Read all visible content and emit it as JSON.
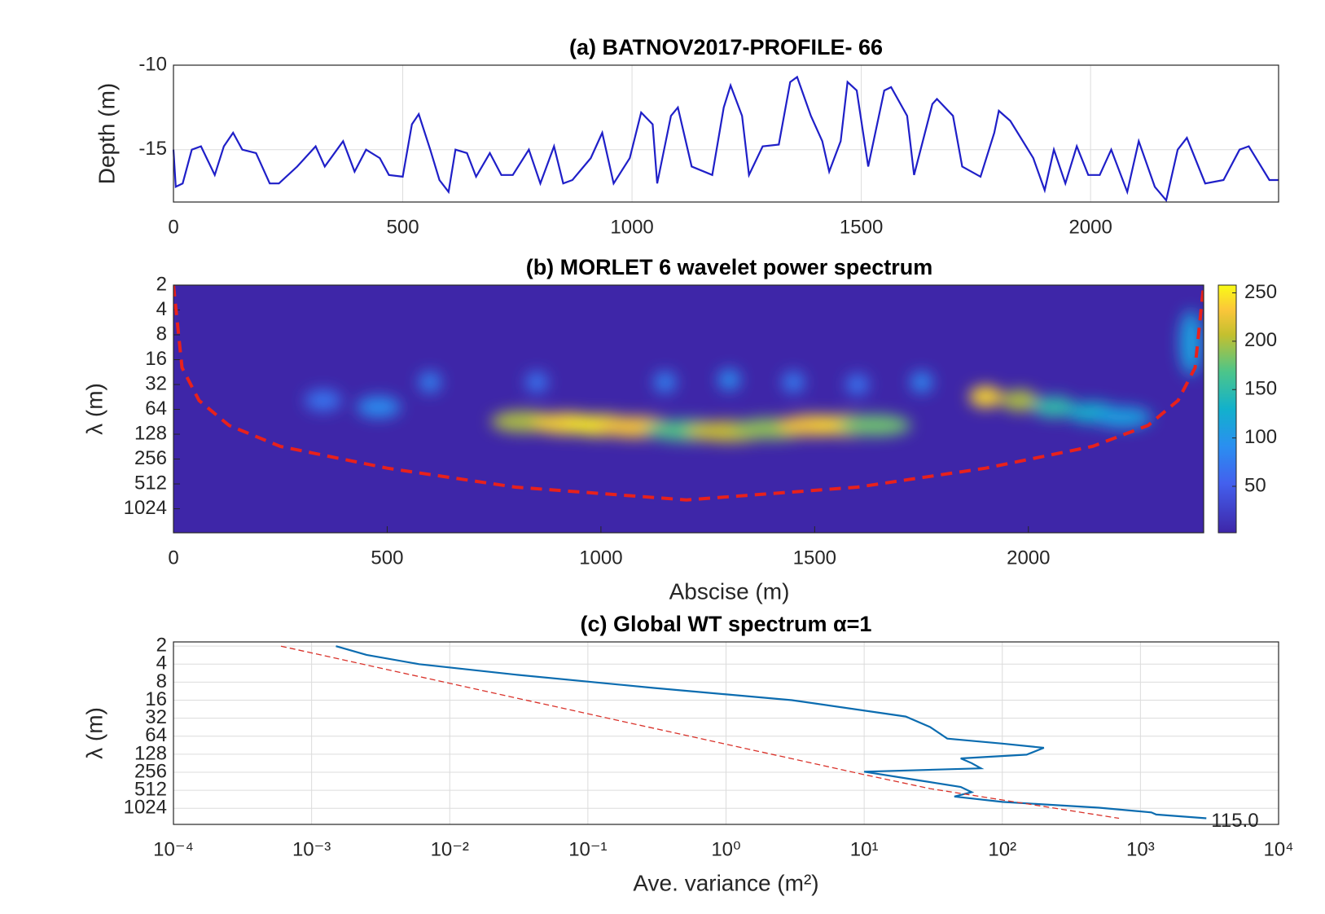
{
  "chart_data": [
    {
      "type": "line",
      "title": "(a) BATNOV2017-PROFILE- 66",
      "ylabel": "Depth (m)",
      "xlim": [
        0,
        2410
      ],
      "xticks": [
        0,
        500,
        1000,
        1500,
        2000
      ],
      "ylim": [
        -18.1,
        -10
      ],
      "yticks": [
        -10,
        -15
      ],
      "grid": true,
      "lines": [
        {
          "color": "#1f1fc8",
          "style": "solid",
          "x": [
            0,
            5,
            20,
            40,
            60,
            90,
            110,
            130,
            150,
            180,
            210,
            230,
            270,
            310,
            330,
            370,
            395,
            420,
            450,
            470,
            500,
            520,
            535,
            560,
            580,
            600,
            615,
            640,
            660,
            690,
            715,
            740,
            775,
            800,
            830,
            850,
            870,
            910,
            935,
            960,
            995,
            1020,
            1045,
            1055,
            1085,
            1100,
            1130,
            1175,
            1200,
            1215,
            1240,
            1255,
            1285,
            1320,
            1345,
            1360,
            1390,
            1415,
            1430,
            1455,
            1470,
            1490,
            1515,
            1550,
            1565,
            1600,
            1615,
            1655,
            1665,
            1700,
            1720,
            1760,
            1790,
            1800,
            1825,
            1875,
            1900,
            1920,
            1945,
            1970,
            1995,
            2020,
            2045,
            2080,
            2105,
            2140,
            2165,
            2190,
            2210,
            2250,
            2290,
            2325,
            2345,
            2390,
            2410
          ],
          "y": [
            -15,
            -17.2,
            -17,
            -15,
            -14.8,
            -16.5,
            -14.8,
            -14,
            -15,
            -15.2,
            -17,
            -17,
            -16,
            -14.8,
            -16,
            -14.5,
            -16.3,
            -15,
            -15.5,
            -16.5,
            -16.6,
            -13.5,
            -12.9,
            -15,
            -16.8,
            -17.5,
            -15,
            -15.2,
            -16.6,
            -15.2,
            -16.5,
            -16.5,
            -15,
            -17,
            -14.8,
            -17,
            -16.8,
            -15.5,
            -14,
            -17,
            -15.5,
            -12.8,
            -13.5,
            -17,
            -13,
            -12.5,
            -16,
            -16.5,
            -12.5,
            -11.2,
            -13,
            -16.5,
            -14.8,
            -14.7,
            -11,
            -10.7,
            -13,
            -14.5,
            -16.3,
            -14.5,
            -11,
            -11.5,
            -16,
            -11.5,
            -11.3,
            -13,
            -16.5,
            -12.3,
            -12,
            -13,
            -16,
            -16.6,
            -14,
            -12.7,
            -13.3,
            -15.5,
            -17.4,
            -15,
            -17,
            -14.8,
            -16.5,
            -16.5,
            -15,
            -17.5,
            -14.5,
            -17.2,
            -18,
            -15,
            -14.3,
            -17,
            -16.8,
            -15,
            -14.8,
            -16.8,
            -16.8
          ]
        }
      ]
    },
    {
      "type": "heatmap",
      "title": "(b) MORLET 6 wavelet power spectrum",
      "xlabel": "Abscise (m)",
      "ylabel": "λ (m)",
      "xlim": [
        0,
        2410
      ],
      "xticks": [
        0,
        500,
        1000,
        1500,
        2000
      ],
      "ylim": [
        2,
        2000
      ],
      "yticks": [
        2,
        4,
        8,
        16,
        32,
        64,
        128,
        256,
        512,
        1024
      ],
      "yscale": "log2",
      "yreverse": true,
      "clim": [
        2,
        258
      ],
      "cticks": [
        50,
        100,
        150,
        200,
        250
      ],
      "cells": {
        "x": [
          820,
          920,
          1000,
          1080,
          1200,
          1300,
          1400,
          1500,
          1580,
          1640,
          1900,
          1980,
          2060,
          2150,
          2220,
          600,
          850,
          1150,
          1300,
          1450,
          1600,
          1750,
          2380,
          350,
          480
        ],
        "lambda": [
          90,
          95,
          100,
          105,
          115,
          118,
          110,
          100,
          100,
          100,
          45,
          50,
          60,
          70,
          80,
          30,
          30,
          30,
          28,
          30,
          32,
          30,
          10,
          50,
          60
        ],
        "power": [
          200,
          240,
          250,
          230,
          170,
          210,
          190,
          230,
          240,
          180,
          240,
          200,
          150,
          130,
          110,
          80,
          70,
          80,
          90,
          75,
          70,
          85,
          110,
          70,
          90
        ]
      },
      "coi": {
        "color": "#e8211c",
        "x": [
          0,
          20,
          60,
          130,
          250,
          500,
          800,
          1200,
          1600,
          1900,
          2150,
          2280,
          2350,
          2390,
          2410
        ],
        "lambda": [
          2,
          20,
          50,
          100,
          180,
          330,
          560,
          800,
          560,
          330,
          180,
          100,
          50,
          20,
          2
        ]
      }
    },
    {
      "type": "line",
      "title": "(c) Global WT spectrum α=1",
      "xlabel": "Ave. variance (m²)",
      "ylabel": "λ (m)",
      "xlim": [
        0.0001,
        10000
      ],
      "xscale": "log",
      "xticks": [
        {
          "value": 0.0001,
          "label": "10⁻⁴"
        },
        {
          "value": 0.001,
          "label": "10⁻³"
        },
        {
          "value": 0.01,
          "label": "10⁻²"
        },
        {
          "value": 0.1,
          "label": "10⁻¹"
        },
        {
          "value": 1,
          "label": "10⁰"
        },
        {
          "value": 10,
          "label": "10¹"
        },
        {
          "value": 100,
          "label": "10²"
        },
        {
          "value": 1000,
          "label": "10³"
        },
        {
          "value": 10000,
          "label": "10⁴"
        }
      ],
      "ylim": [
        1.7,
        1900
      ],
      "yticks": [
        2,
        4,
        8,
        16,
        32,
        64,
        128,
        256,
        512,
        1024
      ],
      "yscale": "log2",
      "yreverse": true,
      "grid": true,
      "annotation": "115.0",
      "lines": [
        {
          "color": "#0b6cb0",
          "style": "solid",
          "x": [
            0.0015,
            0.0025,
            0.006,
            0.03,
            0.3,
            3,
            20,
            30,
            40,
            100,
            200,
            150,
            50,
            60,
            70,
            10,
            25,
            50,
            60,
            45,
            100,
            500,
            1200,
            1300,
            3000
          ],
          "y": [
            2,
            2.8,
            4,
            6,
            10,
            16,
            30,
            45,
            70,
            85,
            100,
            130,
            150,
            180,
            220,
            250,
            350,
            450,
            550,
            650,
            800,
            1000,
            1200,
            1300,
            1500
          ]
        },
        {
          "color": "#d9322a",
          "style": "dashed",
          "x": [
            0.0006,
            10,
            30,
            700
          ],
          "y": [
            2,
            280,
            480,
            1500
          ]
        }
      ]
    }
  ]
}
